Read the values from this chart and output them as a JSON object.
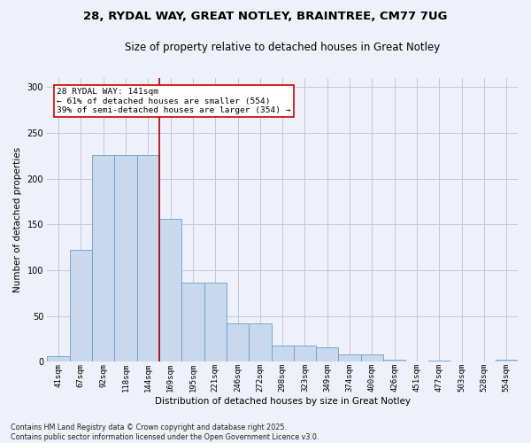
{
  "title": "28, RYDAL WAY, GREAT NOTLEY, BRAINTREE, CM77 7UG",
  "subtitle": "Size of property relative to detached houses in Great Notley",
  "xlabel": "Distribution of detached houses by size in Great Notley",
  "ylabel": "Number of detached properties",
  "categories": [
    "41sqm",
    "67sqm",
    "92sqm",
    "118sqm",
    "144sqm",
    "169sqm",
    "195sqm",
    "221sqm",
    "246sqm",
    "272sqm",
    "298sqm",
    "323sqm",
    "349sqm",
    "374sqm",
    "400sqm",
    "426sqm",
    "451sqm",
    "477sqm",
    "503sqm",
    "528sqm",
    "554sqm"
  ],
  "values": [
    6,
    122,
    226,
    226,
    226,
    156,
    86,
    86,
    42,
    42,
    18,
    18,
    16,
    8,
    8,
    2,
    0,
    1,
    0,
    0,
    2
  ],
  "bar_color": "#c8d9ed",
  "bar_edge_color": "#6a9ec5",
  "grid_color": "#c0c8d8",
  "background_color": "#eef1fa",
  "vline_x_pos": 4.5,
  "vline_color": "#aa0000",
  "annotation_text": "28 RYDAL WAY: 141sqm\n← 61% of detached houses are smaller (554)\n39% of semi-detached houses are larger (354) →",
  "annotation_box_color": "white",
  "annotation_box_edge": "#cc0000",
  "footer_line1": "Contains HM Land Registry data © Crown copyright and database right 2025.",
  "footer_line2": "Contains public sector information licensed under the Open Government Licence v3.0.",
  "ylim": [
    0,
    310
  ],
  "yticks": [
    0,
    50,
    100,
    150,
    200,
    250,
    300
  ]
}
